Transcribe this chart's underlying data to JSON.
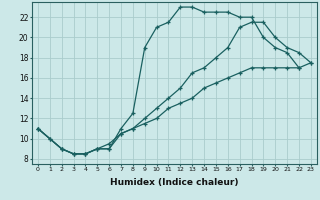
{
  "xlabel": "Humidex (Indice chaleur)",
  "bg_color": "#cce8e8",
  "grid_color": "#aacccc",
  "line_color": "#1a6060",
  "xlim": [
    -0.5,
    23.5
  ],
  "ylim": [
    7.5,
    23.5
  ],
  "xticks": [
    0,
    1,
    2,
    3,
    4,
    5,
    6,
    7,
    8,
    9,
    10,
    11,
    12,
    13,
    14,
    15,
    16,
    17,
    18,
    19,
    20,
    21,
    22,
    23
  ],
  "yticks": [
    8,
    10,
    12,
    14,
    16,
    18,
    20,
    22
  ],
  "line1_x": [
    0,
    1,
    2,
    3,
    4,
    5,
    6,
    7,
    8,
    9,
    10,
    11,
    12,
    13,
    14,
    15,
    16,
    17,
    18,
    19,
    20,
    21,
    22
  ],
  "line1_y": [
    11,
    10,
    9,
    8.5,
    8.5,
    9,
    9,
    11,
    12.5,
    19,
    21,
    21.5,
    23,
    23,
    22.5,
    22.5,
    22.5,
    22,
    22,
    20,
    19,
    18.5,
    17
  ],
  "line2_x": [
    0,
    1,
    2,
    3,
    4,
    5,
    6,
    7,
    8,
    9,
    10,
    11,
    12,
    13,
    14,
    15,
    16,
    17,
    18,
    19,
    20,
    21,
    22,
    23
  ],
  "line2_y": [
    11,
    10,
    9,
    8.5,
    8.5,
    9,
    9.5,
    10.5,
    11,
    12,
    13,
    14,
    15,
    16.5,
    17,
    18,
    19,
    21,
    21.5,
    21.5,
    20,
    19,
    18.5,
    17.5
  ],
  "line3_x": [
    0,
    2,
    3,
    4,
    5,
    6,
    7,
    8,
    9,
    10,
    11,
    12,
    13,
    14,
    15,
    16,
    17,
    18,
    19,
    20,
    21,
    22,
    23
  ],
  "line3_y": [
    11,
    9,
    8.5,
    8.5,
    9,
    9,
    10.5,
    11,
    11.5,
    12,
    13,
    13.5,
    14,
    15,
    15.5,
    16,
    16.5,
    17,
    17,
    17,
    17,
    17,
    17.5
  ]
}
